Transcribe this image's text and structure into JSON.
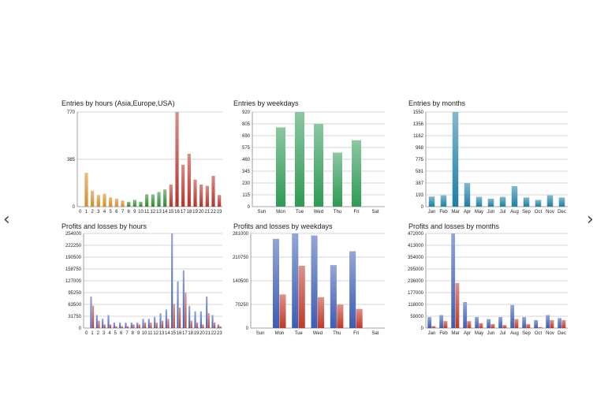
{
  "nav": {
    "prev_label": "‹",
    "next_label": "›"
  },
  "chart_data": [
    {
      "id": "c1",
      "type": "bar",
      "title": "Entries by hours (Asia,Europe,USA)",
      "categories": [
        "0",
        "1",
        "2",
        "3",
        "4",
        "5",
        "6",
        "7",
        "8",
        "9",
        "10",
        "11",
        "12",
        "13",
        "14",
        "15",
        "16",
        "17",
        "18",
        "19",
        "20",
        "21",
        "22",
        "23"
      ],
      "values": [
        0,
        275,
        130,
        95,
        105,
        75,
        65,
        50,
        40,
        55,
        40,
        100,
        100,
        120,
        140,
        180,
        770,
        340,
        430,
        220,
        180,
        170,
        250,
        95
      ],
      "colors": [
        "#d38b25",
        "#d38b25",
        "#d38b25",
        "#d38b25",
        "#d38b25",
        "#d38b25",
        "#d38b25",
        "#d38b25",
        "#2e8a2e",
        "#2e8a2e",
        "#2e8a2e",
        "#2e8a2e",
        "#2e8a2e",
        "#2e8a2e",
        "#2e8a2e",
        "#b5332b",
        "#b5332b",
        "#b5332b",
        "#b5332b",
        "#b5332b",
        "#b5332b",
        "#b5332b",
        "#b5332b",
        "#b5332b"
      ],
      "yticks": [
        "0",
        "385",
        "770"
      ],
      "ylim": [
        0,
        770
      ],
      "grid": true
    },
    {
      "id": "c2",
      "type": "bar",
      "title": "Entries by weekdays",
      "categories": [
        "Sun",
        "Mon",
        "Tue",
        "Wed",
        "Thu",
        "Fri",
        "Sat"
      ],
      "values": [
        0,
        770,
        920,
        805,
        525,
        645,
        0
      ],
      "color": "#2f9a55",
      "yticks": [
        "0",
        "115",
        "230",
        "345",
        "460",
        "575",
        "690",
        "805",
        "920"
      ],
      "ylim": [
        0,
        920
      ],
      "grid": true
    },
    {
      "id": "c3",
      "type": "bar",
      "title": "Entries by months",
      "categories": [
        "Jan",
        "Feb",
        "Mar",
        "Apr",
        "May",
        "Jun",
        "Jul",
        "Aug",
        "Sep",
        "Oct",
        "Nov",
        "Dec"
      ],
      "values": [
        165,
        185,
        1550,
        385,
        160,
        130,
        160,
        335,
        150,
        110,
        185,
        150
      ],
      "color": "#1e7fa3",
      "yticks": [
        "0",
        "193",
        "387",
        "581",
        "775",
        "968",
        "1162",
        "1356",
        "1550"
      ],
      "ylim": [
        0,
        1550
      ],
      "grid": true
    },
    {
      "id": "c4",
      "type": "bar",
      "title": "Profits and losses by hours",
      "categories": [
        "0",
        "1",
        "2",
        "3",
        "4",
        "5",
        "6",
        "7",
        "8",
        "9",
        "10",
        "11",
        "12",
        "13",
        "14",
        "15",
        "16",
        "17",
        "18",
        "19",
        "20",
        "21",
        "22",
        "23"
      ],
      "series": [
        {
          "values": [
            0,
            85000,
            35000,
            25000,
            35000,
            15000,
            15000,
            15000,
            15000,
            15000,
            25000,
            25000,
            30000,
            40000,
            50000,
            254000,
            125000,
            155000,
            60000,
            45000,
            45000,
            85000,
            35000,
            10000
          ],
          "color": "#3d5db4"
        },
        {
          "values": [
            0,
            60000,
            20000,
            10000,
            10000,
            5000,
            5000,
            5000,
            10000,
            10000,
            15000,
            15000,
            15000,
            20000,
            25000,
            65000,
            55000,
            95000,
            20000,
            15000,
            10000,
            40000,
            15000,
            5000
          ],
          "color": "#c0392b"
        }
      ],
      "yticks": [
        "0",
        "31750",
        "63500",
        "95250",
        "127000",
        "158750",
        "190500",
        "222250",
        "254000"
      ],
      "ylim": [
        0,
        254000
      ],
      "grid": true
    },
    {
      "id": "c5",
      "type": "bar",
      "title": "Profits and losses by weekdays",
      "categories": [
        "Sun",
        "Mon",
        "Tue",
        "Wed",
        "Thu",
        "Fri",
        "Sat"
      ],
      "series": [
        {
          "values": [
            0,
            265000,
            281000,
            275000,
            187000,
            228000,
            0
          ],
          "color": "#3d5db4"
        },
        {
          "values": [
            0,
            100000,
            185000,
            92000,
            70000,
            57000,
            0
          ],
          "color": "#c0392b"
        }
      ],
      "yticks": [
        "0",
        "70250",
        "140500",
        "210750",
        "281000"
      ],
      "ylim": [
        0,
        281000
      ],
      "grid": true
    },
    {
      "id": "c6",
      "type": "bar",
      "title": "Profits and losses by months",
      "categories": [
        "Jan",
        "Feb",
        "Mar",
        "Apr",
        "May",
        "Jun",
        "Jul",
        "Aug",
        "Sep",
        "Oct",
        "Nov",
        "Dec"
      ],
      "series": [
        {
          "values": [
            55000,
            65000,
            472000,
            130000,
            55000,
            45000,
            55000,
            115000,
            55000,
            40000,
            65000,
            50000
          ],
          "color": "#3d5db4"
        },
        {
          "values": [
            10000,
            35000,
            225000,
            35000,
            25000,
            20000,
            15000,
            45000,
            20000,
            5000,
            40000,
            40000
          ],
          "color": "#c0392b"
        }
      ],
      "yticks": [
        "0",
        "59000",
        "118000",
        "177000",
        "236000",
        "295000",
        "354000",
        "413000",
        "472000"
      ],
      "ylim": [
        0,
        472000
      ],
      "grid": true
    }
  ]
}
